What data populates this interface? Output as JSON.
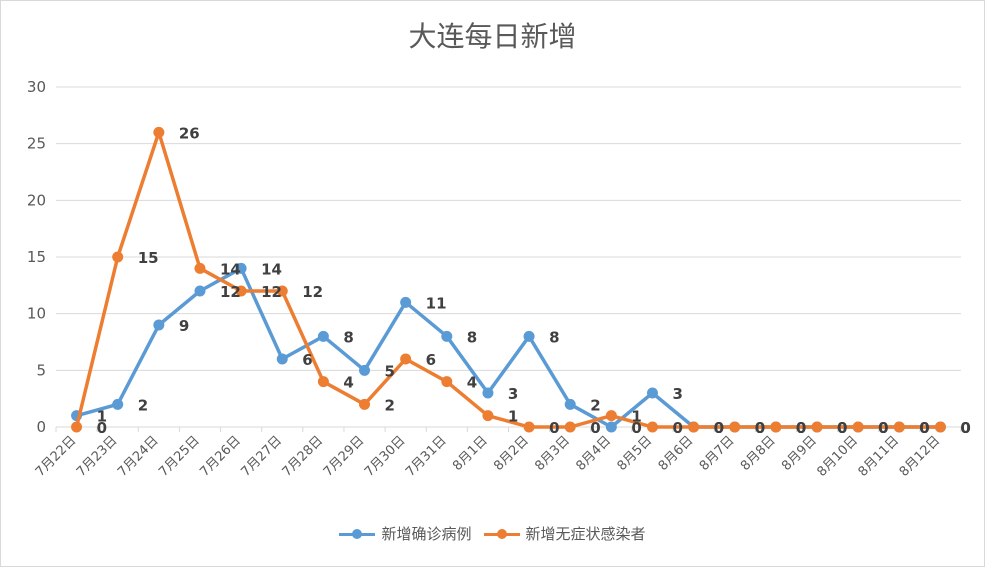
{
  "chart_data": {
    "type": "line",
    "title": "大连每日新增",
    "categories": [
      "7月22日",
      "7月23日",
      "7月24日",
      "7月25日",
      "7月26日",
      "7月27日",
      "7月28日",
      "7月29日",
      "7月30日",
      "7月31日",
      "8月1日",
      "8月2日",
      "8月3日",
      "8月4日",
      "8月5日",
      "8月6日",
      "8月7日",
      "8月8日",
      "8月9日",
      "8月10日",
      "8月11日",
      "8月12日"
    ],
    "series": [
      {
        "name": "新增确诊病例",
        "color": "#5b9bd5",
        "values": [
          1,
          2,
          9,
          12,
          14,
          6,
          8,
          5,
          11,
          8,
          3,
          8,
          2,
          0,
          3,
          0,
          0,
          0,
          0,
          0,
          0,
          0
        ]
      },
      {
        "name": "新增无症状感染者",
        "color": "#ed7d31",
        "values": [
          0,
          15,
          26,
          14,
          12,
          12,
          4,
          2,
          6,
          4,
          1,
          0,
          0,
          1,
          0,
          0,
          0,
          0,
          0,
          0,
          0,
          0
        ]
      }
    ],
    "ylim": [
      0,
      30
    ],
    "yticks": [
      0,
      5,
      10,
      15,
      20,
      25,
      30
    ],
    "grid": true,
    "legend": "bottom"
  }
}
